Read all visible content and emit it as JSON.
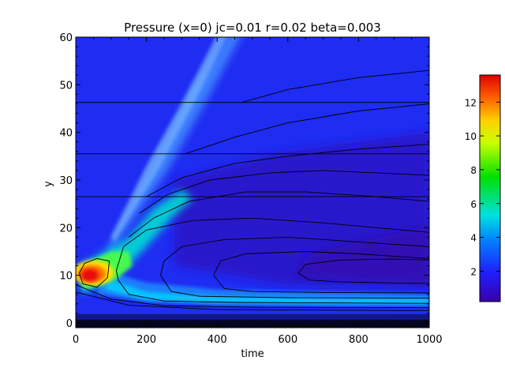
{
  "chart_data": {
    "type": "heatmap",
    "title": "Pressure (x=0) jc=0.01 r=0.02 beta=0.003",
    "xlabel": "time",
    "ylabel": "y",
    "xlim": [
      0,
      1000
    ],
    "ylim": [
      -1,
      60
    ],
    "xticks": [
      0,
      200,
      400,
      600,
      800,
      1000
    ],
    "yticks": [
      0,
      10,
      20,
      30,
      40,
      50,
      60
    ],
    "colorbar": {
      "min": 0.2,
      "max": 13.6,
      "ticks": [
        2,
        4,
        6,
        8,
        10,
        12
      ],
      "colormap": "rainbow"
    },
    "features": {
      "peak": {
        "time": 40,
        "y": 10,
        "value": 13.5
      },
      "front_band_start": {
        "time": 100,
        "y": 15
      },
      "front_band_end": {
        "time": 480,
        "y": 60
      },
      "ambient_value": 1.3
    },
    "horizontal_contours_y": [
      26.5,
      35.5,
      46.3
    ],
    "grid": false
  }
}
